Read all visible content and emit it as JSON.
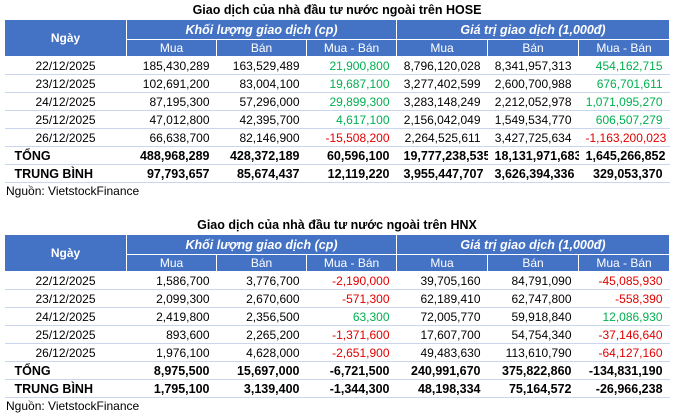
{
  "hose": {
    "title": "Giao dịch của nhà đầu tư nước ngoài trên HOSE",
    "col_day": "Ngày",
    "group_volume": "Khối lượng giao dịch (cp)",
    "group_value": "Giá trị giao dịch (1,000đ)",
    "sub": [
      "Mua",
      "Bán",
      "Mua - Bán",
      "Mua",
      "Bán",
      "Mua - Bán"
    ],
    "rows": [
      {
        "date": "22/12/2025",
        "v": [
          "185,430,289",
          "163,529,489",
          "21,900,800",
          "8,796,120,028",
          "8,341,957,313",
          "454,162,715"
        ],
        "net_vol_color": "green",
        "net_val_color": "green"
      },
      {
        "date": "23/12/2025",
        "v": [
          "102,691,200",
          "83,004,100",
          "19,687,100",
          "3,277,402,599",
          "2,600,700,988",
          "676,701,611"
        ],
        "net_vol_color": "green",
        "net_val_color": "green"
      },
      {
        "date": "24/12/2025",
        "v": [
          "87,195,300",
          "57,296,000",
          "29,899,300",
          "3,283,148,249",
          "2,212,052,978",
          "1,071,095,270"
        ],
        "net_vol_color": "green",
        "net_val_color": "green"
      },
      {
        "date": "25/12/2025",
        "v": [
          "47,012,800",
          "42,395,700",
          "4,617,100",
          "2,156,042,049",
          "1,549,534,770",
          "606,507,279"
        ],
        "net_vol_color": "green",
        "net_val_color": "green"
      },
      {
        "date": "26/12/2025",
        "v": [
          "66,638,700",
          "82,146,900",
          "-15,508,200",
          "2,264,525,611",
          "3,427,725,634",
          "-1,163,200,023"
        ],
        "net_vol_color": "red",
        "net_val_color": "red"
      }
    ],
    "total": {
      "label": "TỔNG",
      "v": [
        "488,968,289",
        "428,372,189",
        "60,596,100",
        "19,777,238,535",
        "18,131,971,683",
        "1,645,266,852"
      ]
    },
    "avg": {
      "label": "TRUNG BÌNH",
      "v": [
        "97,793,657",
        "85,674,437",
        "12,119,220",
        "3,955,447,707",
        "3,626,394,336",
        "329,053,370"
      ]
    },
    "source": "Nguồn: VietstockFinance"
  },
  "hnx": {
    "title": "Giao dịch của nhà đầu tư nước ngoài trên HNX",
    "col_day": "Ngày",
    "group_volume": "Khối lượng giao dịch (cp)",
    "group_value": "Giá trị giao dịch (1,000đ)",
    "sub": [
      "Mua",
      "Bán",
      "Mua - Bán",
      "Mua",
      "Bán",
      "Mua - Bán"
    ],
    "rows": [
      {
        "date": "22/12/2025",
        "v": [
          "1,586,700",
          "3,776,700",
          "-2,190,000",
          "39,705,160",
          "84,791,090",
          "-45,085,930"
        ],
        "net_vol_color": "red",
        "net_val_color": "red"
      },
      {
        "date": "23/12/2025",
        "v": [
          "2,099,300",
          "2,670,600",
          "-571,300",
          "62,189,410",
          "62,747,800",
          "-558,390"
        ],
        "net_vol_color": "red",
        "net_val_color": "red"
      },
      {
        "date": "24/12/2025",
        "v": [
          "2,419,800",
          "2,356,500",
          "63,300",
          "72,005,770",
          "59,918,840",
          "12,086,930"
        ],
        "net_vol_color": "green",
        "net_val_color": "green"
      },
      {
        "date": "25/12/2025",
        "v": [
          "893,600",
          "2,265,200",
          "-1,371,600",
          "17,607,700",
          "54,754,340",
          "-37,146,640"
        ],
        "net_vol_color": "red",
        "net_val_color": "red"
      },
      {
        "date": "26/12/2025",
        "v": [
          "1,976,100",
          "4,628,000",
          "-2,651,900",
          "49,483,630",
          "113,610,790",
          "-64,127,160"
        ],
        "net_vol_color": "red",
        "net_val_color": "red"
      }
    ],
    "total": {
      "label": "TỔNG",
      "v": [
        "8,975,500",
        "15,697,000",
        "-6,721,500",
        "240,991,670",
        "375,822,860",
        "-134,831,190"
      ]
    },
    "avg": {
      "label": "TRUNG BÌNH",
      "v": [
        "1,795,100",
        "3,139,400",
        "-1,344,300",
        "48,198,334",
        "75,164,572",
        "-26,966,238"
      ]
    },
    "source": "Nguồn: VietstockFinance"
  },
  "colors": {
    "header_bg": "#4472c4",
    "positive": "#00b050",
    "negative": "#e00000"
  }
}
